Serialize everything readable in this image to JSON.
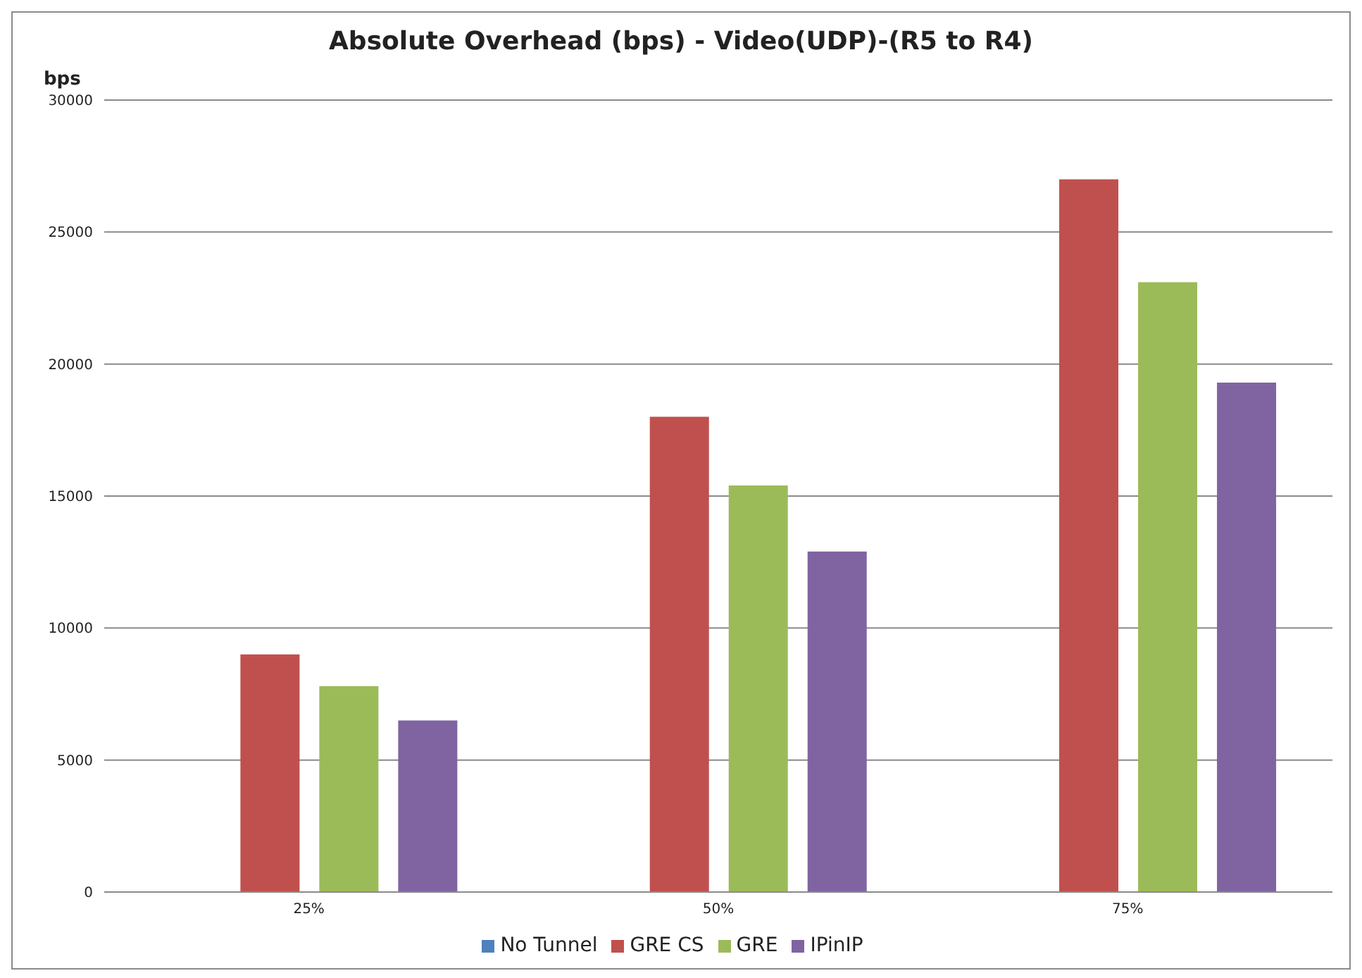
{
  "chart_data": {
    "type": "bar",
    "title": "Absolute  Overhead (bps) - Video(UDP)-(R5 to R4)",
    "ylabel": "bps",
    "categories": [
      "25%",
      "50%",
      "75%"
    ],
    "series": [
      {
        "name": "No Tunnel",
        "color": "#4f81bd",
        "values": [
          0,
          0,
          0
        ]
      },
      {
        "name": "GRE CS",
        "color": "#c0504d",
        "values": [
          9000,
          18000,
          27000
        ]
      },
      {
        "name": "GRE",
        "color": "#9bbb59",
        "values": [
          7800,
          15400,
          23100
        ]
      },
      {
        "name": "IPinIP",
        "color": "#8064a2",
        "values": [
          6500,
          12900,
          19300
        ]
      }
    ],
    "ylim": [
      0,
      30000
    ],
    "yticks": [
      0,
      5000,
      10000,
      15000,
      20000,
      25000,
      30000
    ],
    "grid": "y",
    "legend": "bottom"
  }
}
